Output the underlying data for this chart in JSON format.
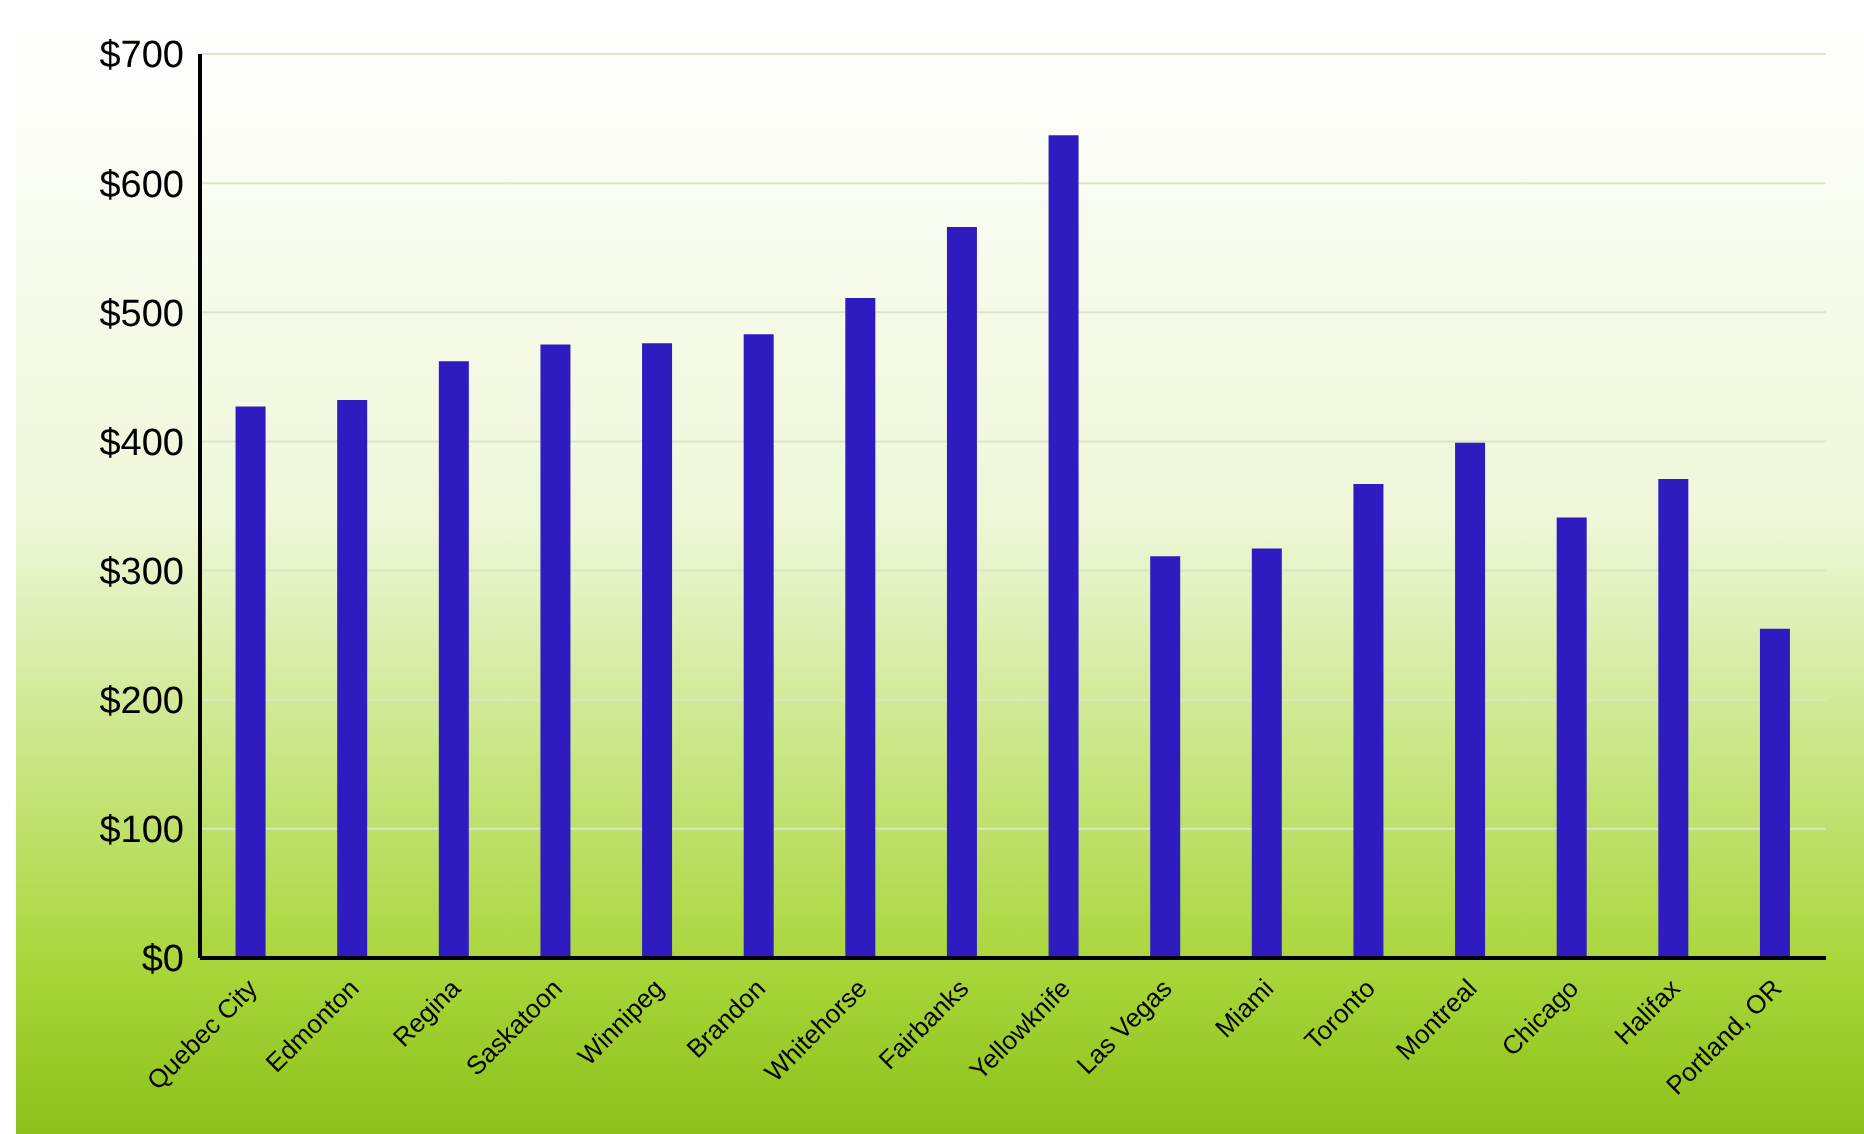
{
  "chart_data": {
    "type": "bar",
    "categories": [
      "Quebec City",
      "Edmonton",
      "Regina",
      "Saskatoon",
      "Winnipeg",
      "Brandon",
      "Whitehorse",
      "Fairbanks",
      "Yellowknife",
      "Las Vegas",
      "Miami",
      "Toronto",
      "Montreal",
      "Chicago",
      "Halifax",
      "Portland, OR"
    ],
    "values": [
      427,
      432,
      462,
      475,
      476,
      483,
      511,
      566,
      637,
      311,
      317,
      367,
      399,
      341,
      371,
      255
    ],
    "color": "#2e1cc0",
    "ylim": [
      0,
      700
    ],
    "yticks": [
      {
        "value": 0,
        "label": "$0"
      },
      {
        "value": 100,
        "label": "$100"
      },
      {
        "value": 200,
        "label": "$200"
      },
      {
        "value": 300,
        "label": "$300"
      },
      {
        "value": 400,
        "label": "$400"
      },
      {
        "value": 500,
        "label": "$500"
      },
      {
        "value": 600,
        "label": "$600"
      },
      {
        "value": 700,
        "label": "$700"
      }
    ],
    "grid": "y"
  }
}
